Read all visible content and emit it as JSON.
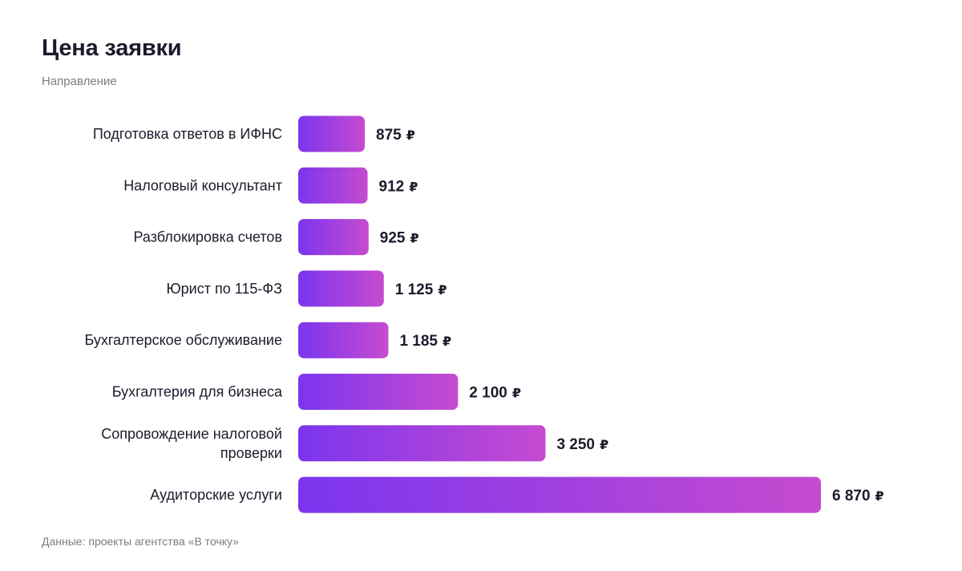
{
  "header": {
    "title": "Цена заявки",
    "subtitle": "Направление"
  },
  "footer": {
    "source": "Данные: проекты агентства «В точку»"
  },
  "colors": {
    "bar_start": "#7b35ee",
    "bar_end": "#c64bd0",
    "text": "#1b1b2c",
    "muted": "#7c7c86"
  },
  "chart_data": {
    "type": "bar",
    "orientation": "horizontal",
    "categories": [
      "Подготовка ответов в ИФНС",
      "Налоговый консультант",
      "Разблокировка счетов",
      "Юрист по 115-ФЗ",
      "Бухгалтерское обслуживание",
      "Бухгалтерия для бизнеса",
      "Сопровождение налоговой проверки",
      "Аудиторские услуги"
    ],
    "values": [
      875,
      912,
      925,
      1125,
      1185,
      2100,
      3250,
      6870
    ],
    "value_labels": [
      "875",
      "912",
      "925",
      "1 125",
      "1 185",
      "2 100",
      "3 250",
      "6 870"
    ],
    "unit": "₽",
    "title": "Цена заявки",
    "xlabel": "",
    "ylabel": "Направление",
    "xlim": [
      0,
      6870
    ],
    "grid": false,
    "legend": "none"
  }
}
